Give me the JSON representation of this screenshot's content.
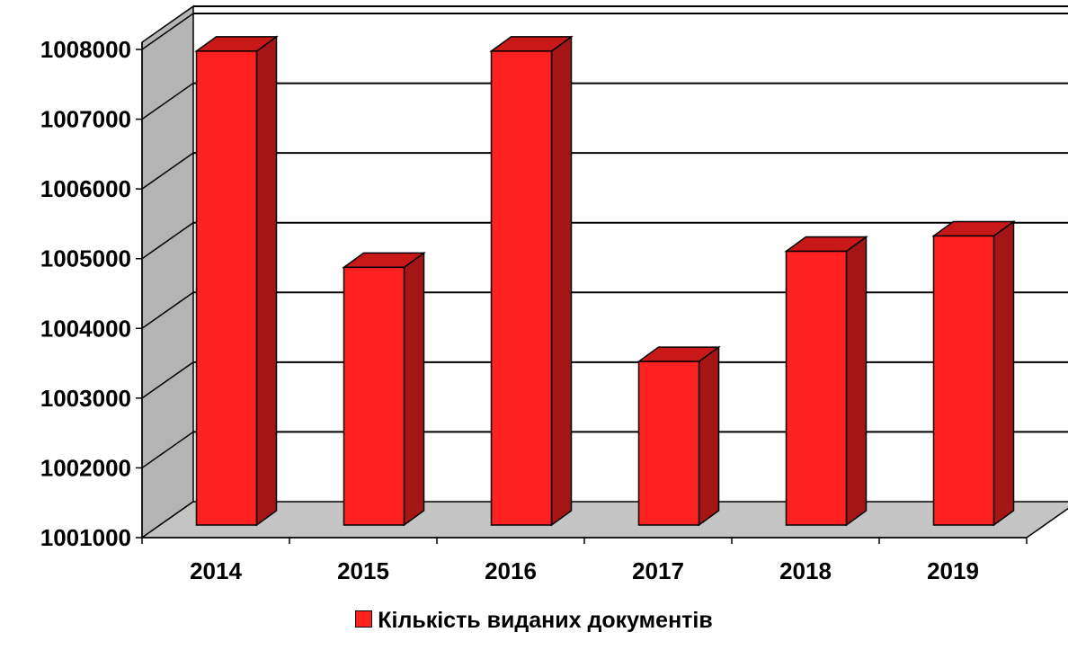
{
  "chart_data": {
    "type": "bar",
    "categories": [
      "2014",
      "2015",
      "2016",
      "2017",
      "2018",
      "2019"
    ],
    "series": [
      {
        "name": "Кількість виданих документів",
        "values": [
          1007950,
          1004850,
          1007950,
          1003500,
          1005080,
          1005300
        ]
      }
    ],
    "ylim": [
      1001000,
      1008000
    ],
    "yticks": [
      "1001000",
      "1002000",
      "1003000",
      "1004000",
      "1005000",
      "1006000",
      "1007000",
      "1008000"
    ],
    "grid": true,
    "legend_position": "bottom",
    "colors": {
      "bar_front": "#ff2020",
      "bar_side": "#a51515",
      "bar_top": "#c81818",
      "wall": "#b4b4b4",
      "floor": "#c4c4c4"
    }
  }
}
